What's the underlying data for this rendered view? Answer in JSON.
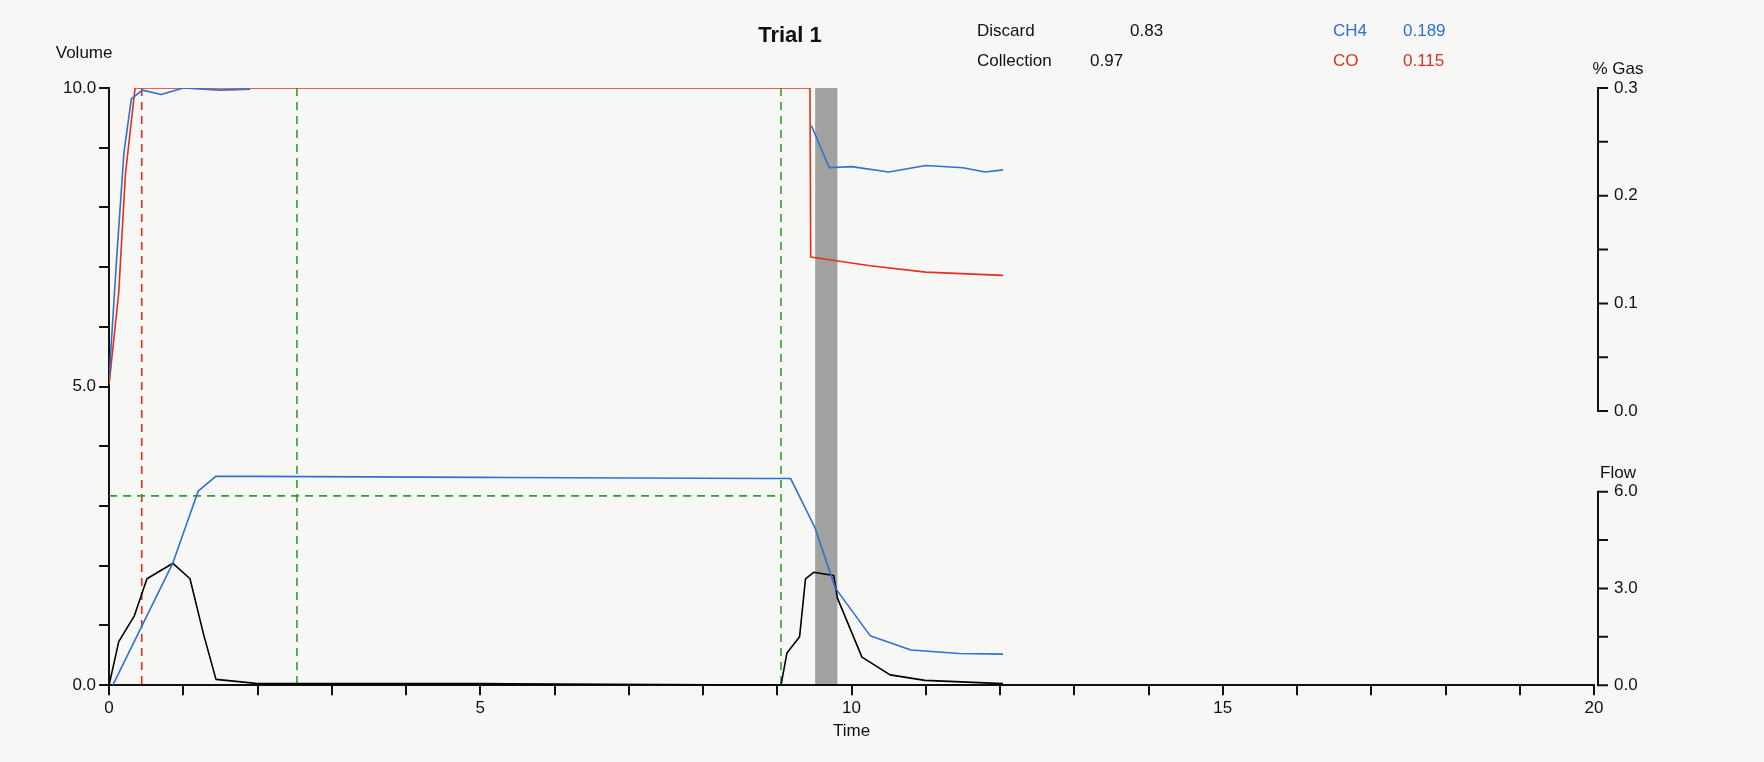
{
  "chart_data": {
    "type": "line",
    "title": "Trial 1",
    "xlabel": "Time",
    "ylabel": "Volume",
    "y2label": "% Gas",
    "y3label": "Flow",
    "annotations": [
      "Discard",
      "0.83",
      "Collection",
      "0.97",
      "0.189",
      "0.115"
    ],
    "xlim": [
      0,
      20
    ],
    "xticks": [
      0,
      {
        "value": 1,
        "label": null
      },
      {
        "value": 2,
        "label": null
      },
      {
        "value": 3,
        "label": null
      },
      {
        "value": 4,
        "label": null
      },
      5,
      {
        "value": 6,
        "label": null
      },
      {
        "value": 7,
        "label": null
      },
      {
        "value": 8,
        "label": null
      },
      {
        "value": 9,
        "label": null
      },
      10,
      {
        "value": 11,
        "label": null
      },
      {
        "value": 12,
        "label": null
      },
      {
        "value": 13,
        "label": null
      },
      {
        "value": 14,
        "label": null
      },
      15,
      {
        "value": 16,
        "label": null
      },
      {
        "value": 17,
        "label": null
      },
      {
        "value": 18,
        "label": null
      },
      {
        "value": 19,
        "label": null
      },
      20
    ],
    "ylim": [
      0,
      10
    ],
    "yticks": [
      {
        "value": 0,
        "label": "0.0"
      },
      {
        "value": 1,
        "label": null
      },
      {
        "value": 2,
        "label": null
      },
      {
        "value": 3,
        "label": null
      },
      {
        "value": 4,
        "label": null
      },
      {
        "value": 5,
        "label": "5.0"
      },
      {
        "value": 6,
        "label": null
      },
      {
        "value": 7,
        "label": null
      },
      {
        "value": 8,
        "label": null
      },
      {
        "value": 9,
        "label": null
      },
      {
        "value": 10,
        "label": "10.0"
      }
    ],
    "y2lim": [
      0,
      0.3
    ],
    "y2ticks": [
      {
        "value": 0,
        "label": "0.0"
      },
      {
        "value": 0.05,
        "label": null
      },
      {
        "value": 0.1,
        "label": "0.1"
      },
      {
        "value": 0.15,
        "label": null
      },
      {
        "value": 0.2,
        "label": "0.2"
      },
      {
        "value": 0.25,
        "label": null
      },
      {
        "value": 0.3,
        "label": "0.3"
      }
    ],
    "y3lim": [
      0,
      6
    ],
    "y3ticks": [
      {
        "value": 0,
        "label": "0.0"
      },
      {
        "value": 1.5,
        "label": null
      },
      {
        "value": 3,
        "label": "3.0"
      },
      {
        "value": 4.5,
        "label": null
      },
      {
        "value": 6,
        "label": "6.0"
      }
    ],
    "grid": false,
    "marker": "none",
    "ref_lines": [
      {
        "axis": "x",
        "value": 0.44,
        "color": "#e03020",
        "line_style": "dashed"
      },
      {
        "axis": "x",
        "value": 2.53,
        "color": "#30a030",
        "line_style": "dashed"
      },
      {
        "axis": "x",
        "value": 9.05,
        "color": "#30a030",
        "line_style": "dashed"
      }
    ],
    "bands": [
      {
        "axis": "x",
        "from": 9.51,
        "to": 9.81,
        "color": "#000000"
      }
    ],
    "series": [
      {
        "name": "CH4",
        "color": "#3070d0",
        "axis": "y2",
        "x": [
          0,
          0.1,
          0.2,
          0.3,
          0.45,
          0.7,
          1.0,
          1.5,
          1.9,
          9.45,
          9.46,
          9.7,
          10.0,
          10.5,
          11.0,
          11.5,
          11.8,
          12.04
        ],
        "values": [
          0.03,
          0.14,
          0.24,
          0.29,
          0.298,
          0.294,
          0.3,
          0.298,
          0.299,
          null,
          0.265,
          0.226,
          0.227,
          0.222,
          0.228,
          0.226,
          0.222,
          0.224
        ]
      },
      {
        "name": "CO",
        "color": "#e03020",
        "axis": "y2",
        "x": [
          0,
          0.13,
          0.22,
          0.35,
          9.44,
          9.45,
          10.25,
          11.0,
          12.04
        ],
        "values": [
          0.025,
          0.11,
          0.22,
          0.3,
          0.3,
          0.143,
          0.135,
          0.129,
          0.126
        ]
      },
      {
        "color": "#3070d0",
        "axis": "y",
        "x": [
          0.05,
          0.86,
          1.2,
          1.44,
          5,
          9.18,
          9.51,
          9.78,
          10.25,
          10.8,
          11.45,
          12.04
        ],
        "values": [
          0,
          2.05,
          3.25,
          3.5,
          3.48,
          3.46,
          2.63,
          1.63,
          0.83,
          0.59,
          0.53,
          0.52
        ]
      },
      {
        "color": "#000000",
        "axis": "y3",
        "x": [
          0,
          0.13,
          0.34,
          0.51,
          0.86,
          1.09,
          1.27,
          1.44,
          2,
          5,
          9.05,
          9.13,
          9.3,
          9.38,
          9.49,
          9.76,
          9.81,
          10.14,
          10.52,
          10.99,
          12.04
        ],
        "values": [
          0,
          1.35,
          2.15,
          3.3,
          3.78,
          3.3,
          1.6,
          0.18,
          0.05,
          0.05,
          0,
          1.0,
          1.5,
          3.3,
          3.5,
          3.4,
          2.7,
          0.87,
          0.32,
          0.15,
          0.05
        ]
      },
      {
        "color": "#30a030",
        "axis": "y",
        "line_style": "dashed",
        "x": [
          0,
          9.05
        ],
        "values": [
          3.17,
          3.17
        ]
      }
    ]
  }
}
